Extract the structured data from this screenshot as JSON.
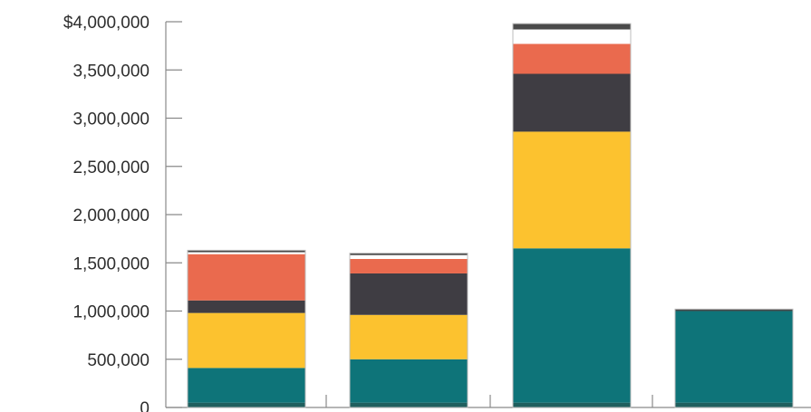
{
  "chart_data": {
    "type": "bar",
    "stacked": true,
    "categories": [
      "",
      "",
      "",
      ""
    ],
    "ylim": [
      0,
      4000000
    ],
    "y_ticks": [
      {
        "value": 0,
        "label": "0"
      },
      {
        "value": 500000,
        "label": "500,000"
      },
      {
        "value": 1000000,
        "label": "1,000,000"
      },
      {
        "value": 1500000,
        "label": "1,500,000"
      },
      {
        "value": 2000000,
        "label": "2,000,000"
      },
      {
        "value": 2500000,
        "label": "2,500,000"
      },
      {
        "value": 3000000,
        "label": "3,000,000"
      },
      {
        "value": 3500000,
        "label": "3,500,000"
      },
      {
        "value": 4000000,
        "label": "$4,000,000"
      }
    ],
    "grid": false,
    "legend": "none",
    "series": [
      {
        "color": "#1f5f5e",
        "values": [
          50000,
          50000,
          50000,
          50000
        ]
      },
      {
        "color": "#0e7479",
        "values": [
          360000,
          450000,
          1600000,
          950000
        ]
      },
      {
        "color": "#fcc22f",
        "values": [
          570000,
          460000,
          1210000,
          0
        ]
      },
      {
        "color": "#3f3d43",
        "values": [
          130000,
          430000,
          600000,
          0
        ]
      },
      {
        "color": "#ea6a4e",
        "values": [
          480000,
          150000,
          310000,
          0
        ]
      },
      {
        "color": "#ffffff",
        "values": [
          20000,
          40000,
          150000,
          0
        ]
      },
      {
        "color": "#4a4a4a",
        "values": [
          20000,
          20000,
          60000,
          20000
        ]
      }
    ]
  }
}
